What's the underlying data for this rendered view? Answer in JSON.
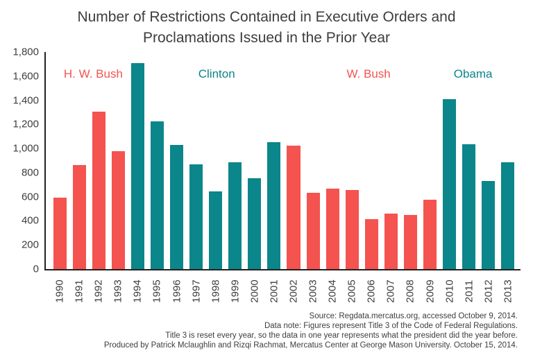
{
  "title": {
    "line1": "Number of Restrictions Contained in Executive Orders and",
    "line2": "Proclamations Issued in the Prior Year"
  },
  "chart_data": {
    "type": "bar",
    "title": "Number of Restrictions Contained in Executive Orders and Proclamations Issued in the Prior Year",
    "categories": [
      "1990",
      "1991",
      "1992",
      "1993",
      "1994",
      "1995",
      "1996",
      "1997",
      "1998",
      "1999",
      "2000",
      "2001",
      "2002",
      "2003",
      "2004",
      "2005",
      "2006",
      "2007",
      "2008",
      "2009",
      "2010",
      "2011",
      "2012",
      "2013"
    ],
    "values": [
      590,
      860,
      1305,
      975,
      1710,
      1225,
      1030,
      870,
      645,
      885,
      755,
      1050,
      1025,
      635,
      665,
      655,
      415,
      460,
      450,
      575,
      1410,
      1035,
      730,
      885
    ],
    "bar_color_keys": [
      "red",
      "red",
      "red",
      "red",
      "teal",
      "teal",
      "teal",
      "teal",
      "teal",
      "teal",
      "teal",
      "teal",
      "red",
      "red",
      "red",
      "red",
      "red",
      "red",
      "red",
      "red",
      "teal",
      "teal",
      "teal",
      "teal"
    ],
    "colors": {
      "red": "#f4534f",
      "teal": "#0b868a"
    },
    "xlabel": "",
    "ylabel": "",
    "ylim": [
      0,
      1800
    ],
    "ytick_labels": [
      "0",
      "200",
      "400",
      "600",
      "800",
      "1,000",
      "1,200",
      "1,400",
      "1,600",
      "1,800"
    ],
    "grid": false,
    "legend": "none",
    "annotations": [
      {
        "label": "H. W. Bush",
        "color_key": "red",
        "x_percent": 10
      },
      {
        "label": "Clinton",
        "color_key": "teal",
        "x_percent": 36
      },
      {
        "label": "W. Bush",
        "color_key": "red",
        "x_percent": 68
      },
      {
        "label": "Obama",
        "color_key": "teal",
        "x_percent": 90
      }
    ]
  },
  "footnotes": [
    "Source: Regdata.mercatus.org, accessed October 9, 2014.",
    "Data note: Figures represent Title 3 of the Code of Federal Regulations.",
    "Title 3 is reset every year, so the data in one year represents what the president did the year before.",
    "Produced by Patrick Mclaughlin and Rizqi Rachmat, Mercatus Center at George Mason University. October 15, 2014."
  ]
}
